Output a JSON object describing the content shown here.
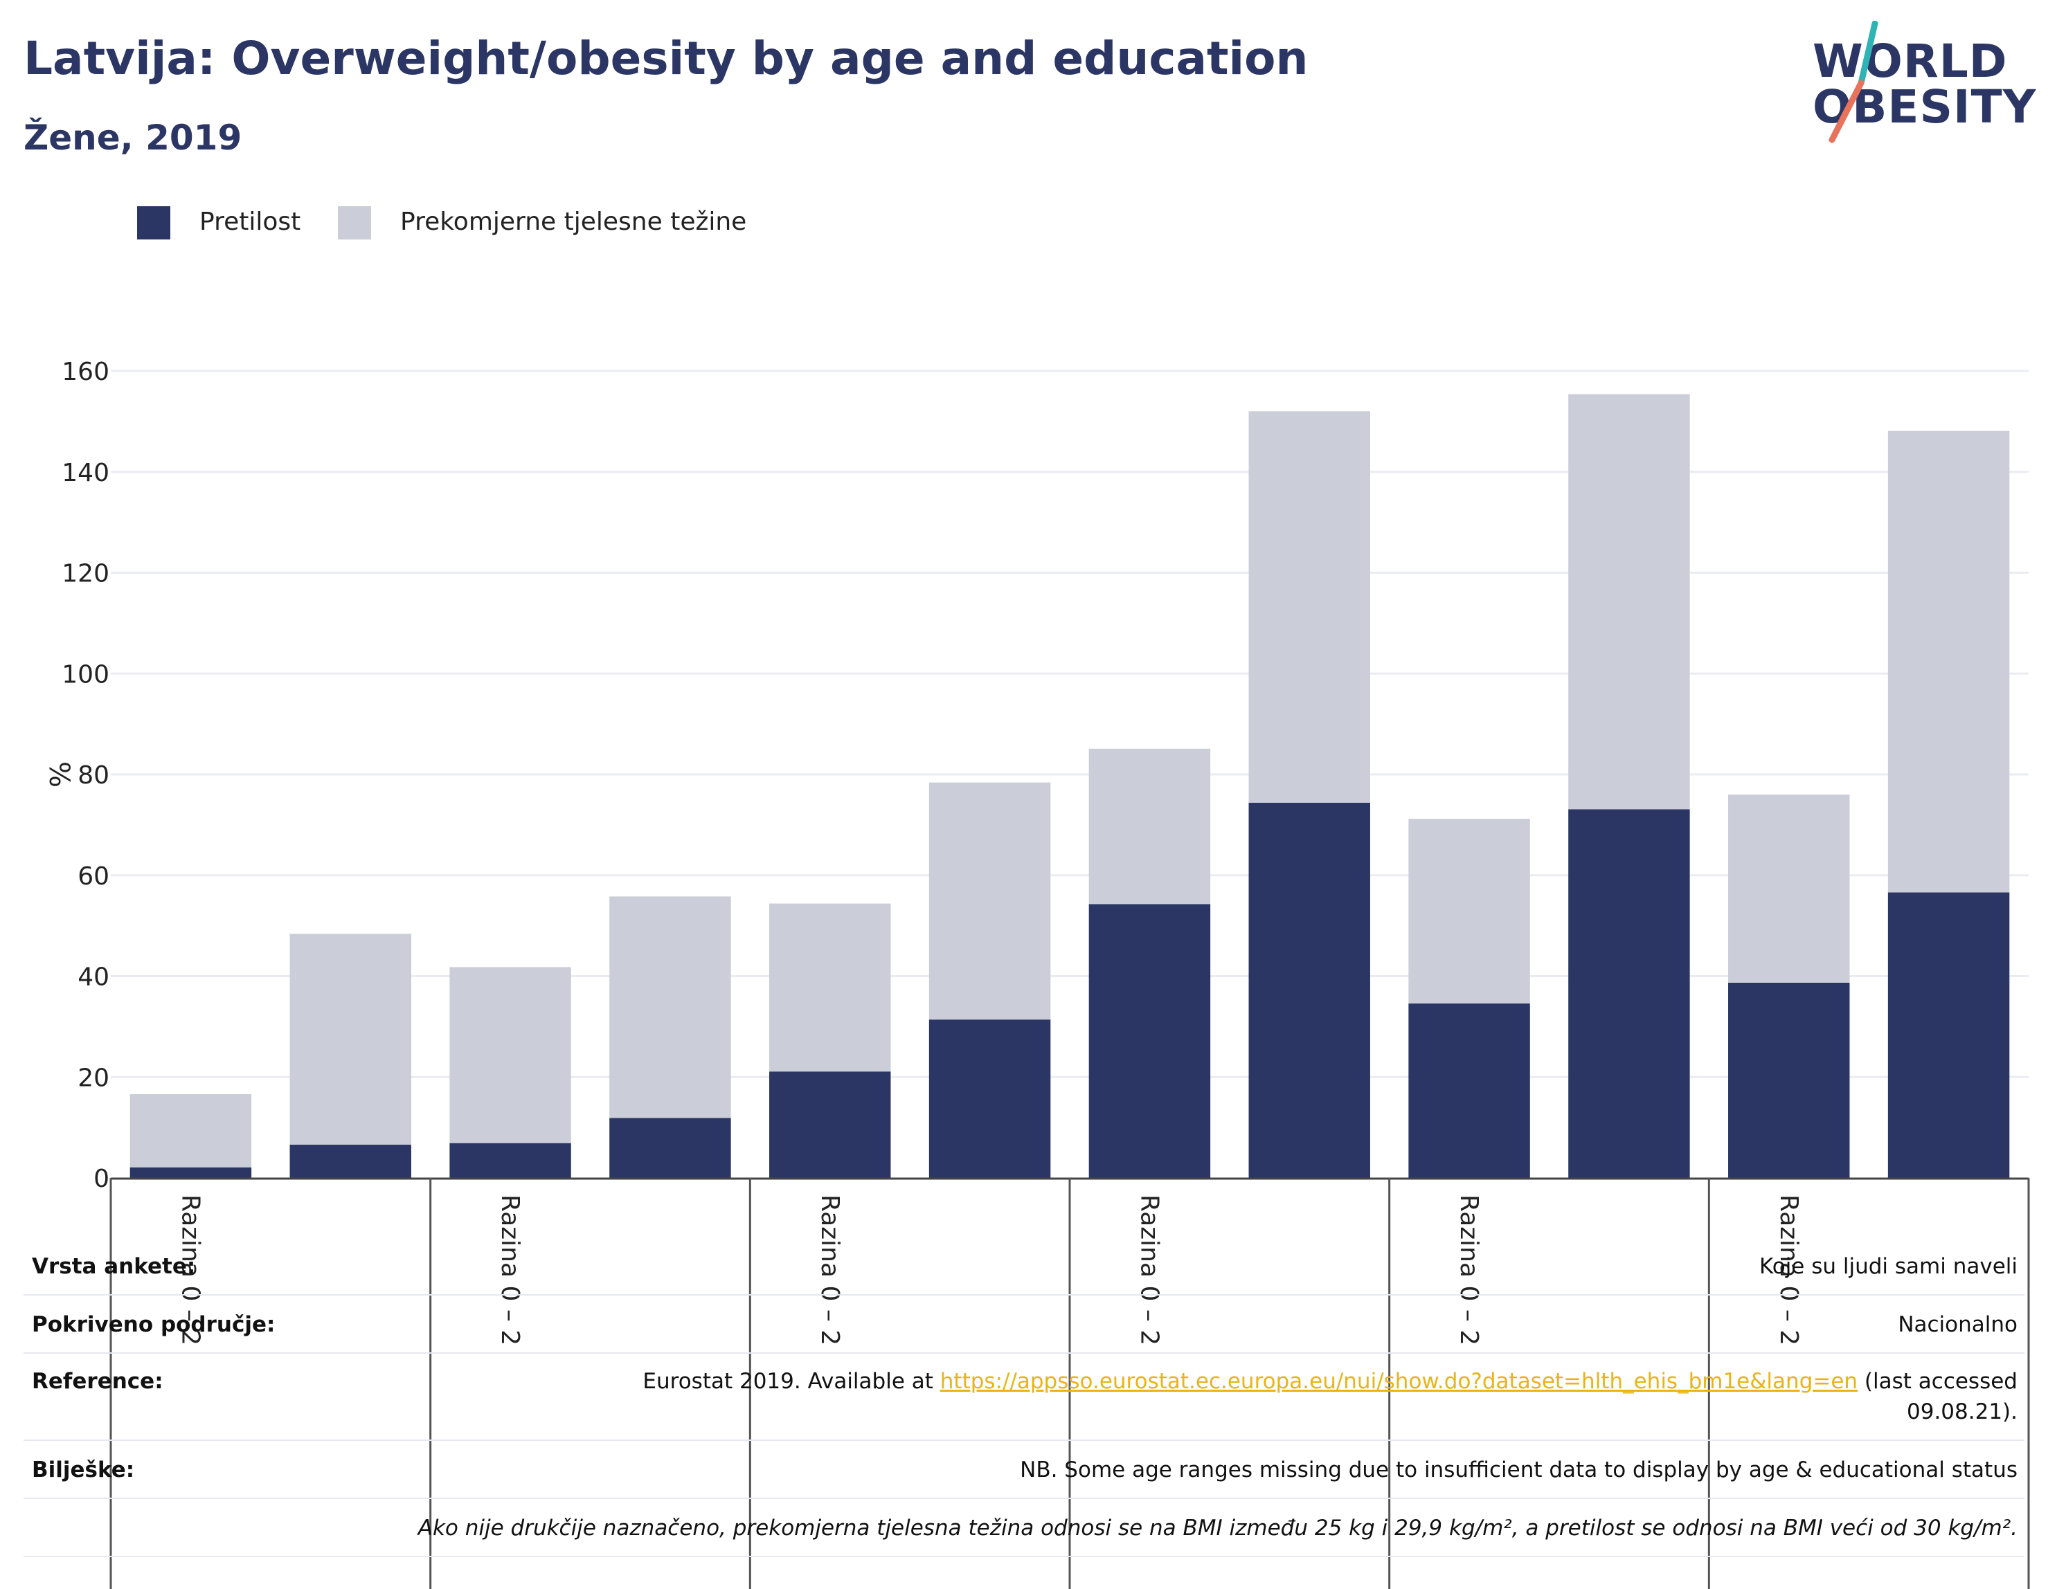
{
  "header": {
    "title": "Latvija: Overweight/obesity by age and education",
    "subtitle": "Žene, 2019"
  },
  "logo": {
    "line1": "WORLD",
    "line2": "OBESITY"
  },
  "colors": {
    "obesity": "#2b3664",
    "overweight": "#cbcdd8",
    "accent_teal": "#2fb3b4",
    "accent_coral": "#e8735d",
    "link": "#e8b418"
  },
  "chart_data": {
    "type": "bar",
    "stacked": true,
    "categories": [
      "Razina 0 – 2",
      "",
      "Razina 0 – 2",
      "",
      "Razina 0 – 2",
      "",
      "Razina 0 – 2",
      "",
      "Razina 0 – 2",
      "",
      "Razina 0 – 2",
      ""
    ],
    "series": [
      {
        "name": "Pretilost",
        "color": "#2b3664",
        "values": [
          2.1,
          6.6,
          6.9,
          11.9,
          21.1,
          31.4,
          54.3,
          74.4,
          34.6,
          73.1,
          38.7,
          56.6
        ]
      },
      {
        "name": "Prekomjerne tjelesne težine",
        "color": "#cbcdd8",
        "values": [
          14.5,
          41.8,
          34.9,
          43.9,
          33.3,
          47.0,
          30.8,
          77.6,
          36.6,
          82.3,
          37.3,
          91.5
        ]
      }
    ],
    "ylabel": "%",
    "ylim": [
      0,
      160
    ],
    "yticks": [
      0,
      20,
      40,
      60,
      80,
      100,
      120,
      140,
      160
    ],
    "grid": true,
    "legend": "top-left"
  },
  "notes": {
    "survey_key": "Vrsta ankete:",
    "survey_val": "Koje su ljudi sami naveli",
    "coverage_key": "Pokriveno područje:",
    "coverage_val": "Nacionalno",
    "reference_key": "Reference:",
    "reference_pre": "Eurostat 2019. Available at ",
    "reference_link": "https://appsso.eurostat.ec.europa.eu/nui/show.do?dataset=hlth_ehis_bm1e&lang=en",
    "reference_post": " (last accessed",
    "reference_line2": "09.08.21).",
    "notes_key": "Bilješke:",
    "notes_val": "NB. Some age ranges missing due to insufficient data to display by age & educational status",
    "definition": "Ako nije drukčije naznačeno, prekomjerna tjelesna težina odnosi se na BMI između 25 kg i 29,9 kg/m², a pretilost se odnosi na BMI veći od 30 kg/m²."
  }
}
